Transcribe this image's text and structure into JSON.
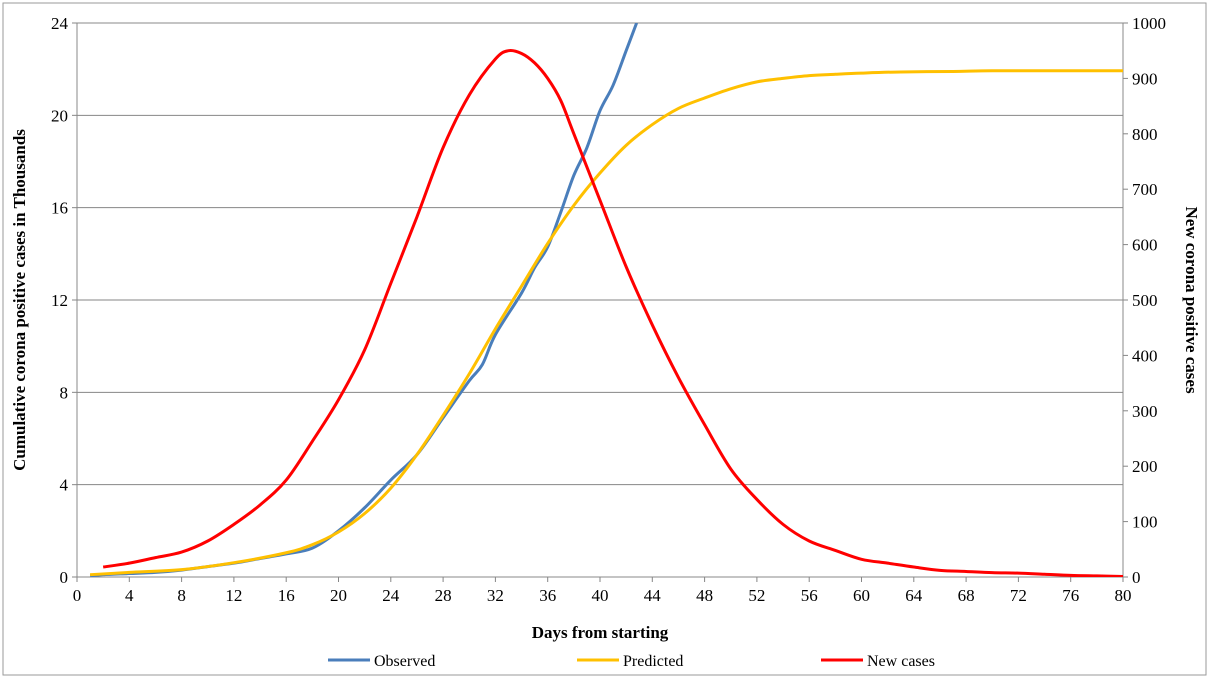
{
  "chart_data": {
    "type": "line",
    "title": "",
    "xlabel": "Days from starting",
    "ylabel_left": "Cumulative corona positive cases in Thousands",
    "ylabel_right": "New corona positive cases",
    "xlim": [
      0,
      80
    ],
    "ylim_left": [
      0,
      24
    ],
    "ylim_right": [
      0,
      1000
    ],
    "x_ticks": [
      "0",
      "4",
      "8",
      "12",
      "16",
      "20",
      "24",
      "28",
      "32",
      "36",
      "40",
      "44",
      "48",
      "52",
      "56",
      "60",
      "64",
      "68",
      "72",
      "76",
      "80"
    ],
    "y_left_ticks": [
      "0",
      "4",
      "8",
      "12",
      "16",
      "20",
      "24"
    ],
    "y_right_ticks": [
      "0",
      "100",
      "200",
      "300",
      "400",
      "500",
      "600",
      "700",
      "800",
      "900",
      "1000"
    ],
    "grid": "horizontal",
    "legend_position": "bottom",
    "series": [
      {
        "name": "Observed",
        "axis": "left",
        "color": "#4a7ebb",
        "points": [
          [
            1,
            0.05
          ],
          [
            2,
            0.1
          ],
          [
            4,
            0.15
          ],
          [
            6,
            0.2
          ],
          [
            8,
            0.3
          ],
          [
            10,
            0.45
          ],
          [
            12,
            0.6
          ],
          [
            14,
            0.8
          ],
          [
            16,
            1.0
          ],
          [
            18,
            1.25
          ],
          [
            20,
            2.0
          ],
          [
            22,
            3.0
          ],
          [
            24,
            4.2
          ],
          [
            26,
            5.3
          ],
          [
            28,
            6.9
          ],
          [
            30,
            8.5
          ],
          [
            31,
            9.2
          ],
          [
            32,
            10.5
          ],
          [
            34,
            12.3
          ],
          [
            35,
            13.4
          ],
          [
            36,
            14.3
          ],
          [
            37,
            15.8
          ],
          [
            38,
            17.4
          ],
          [
            39,
            18.6
          ],
          [
            40,
            20.2
          ],
          [
            41,
            21.3
          ],
          [
            42,
            22.8
          ],
          [
            42.8,
            24.0
          ]
        ]
      },
      {
        "name": "Predicted",
        "axis": "left",
        "color": "#ffc000",
        "points": [
          [
            1,
            0.1
          ],
          [
            4,
            0.2
          ],
          [
            8,
            0.32
          ],
          [
            12,
            0.62
          ],
          [
            16,
            1.05
          ],
          [
            18,
            1.4
          ],
          [
            20,
            1.95
          ],
          [
            22,
            2.75
          ],
          [
            24,
            3.85
          ],
          [
            26,
            5.3
          ],
          [
            28,
            7.0
          ],
          [
            30,
            8.8
          ],
          [
            32,
            10.75
          ],
          [
            34,
            12.6
          ],
          [
            36,
            14.45
          ],
          [
            38,
            16.1
          ],
          [
            40,
            17.5
          ],
          [
            42,
            18.7
          ],
          [
            44,
            19.6
          ],
          [
            46,
            20.3
          ],
          [
            48,
            20.75
          ],
          [
            50,
            21.15
          ],
          [
            52,
            21.45
          ],
          [
            54,
            21.6
          ],
          [
            56,
            21.72
          ],
          [
            58,
            21.78
          ],
          [
            60,
            21.83
          ],
          [
            63,
            21.88
          ],
          [
            67,
            21.9
          ],
          [
            70,
            21.93
          ],
          [
            75,
            21.93
          ],
          [
            80,
            21.93
          ]
        ]
      },
      {
        "name": "New cases",
        "axis": "right",
        "color": "#ff0000",
        "points": [
          [
            2,
            18
          ],
          [
            4,
            25
          ],
          [
            6,
            35
          ],
          [
            8,
            45
          ],
          [
            10,
            65
          ],
          [
            12,
            95
          ],
          [
            14,
            130
          ],
          [
            16,
            175
          ],
          [
            18,
            245
          ],
          [
            20,
            320
          ],
          [
            22,
            410
          ],
          [
            24,
            530
          ],
          [
            26,
            650
          ],
          [
            28,
            775
          ],
          [
            30,
            870
          ],
          [
            32,
            935
          ],
          [
            33,
            950
          ],
          [
            34,
            945
          ],
          [
            35,
            928
          ],
          [
            36,
            900
          ],
          [
            37,
            860
          ],
          [
            38,
            800
          ],
          [
            40,
            680
          ],
          [
            42,
            560
          ],
          [
            44,
            455
          ],
          [
            46,
            360
          ],
          [
            48,
            275
          ],
          [
            50,
            195
          ],
          [
            52,
            140
          ],
          [
            54,
            95
          ],
          [
            56,
            65
          ],
          [
            58,
            48
          ],
          [
            60,
            32
          ],
          [
            62,
            25
          ],
          [
            64,
            18
          ],
          [
            66,
            12
          ],
          [
            68,
            10
          ],
          [
            70,
            8
          ],
          [
            72,
            7
          ],
          [
            74,
            5
          ],
          [
            76,
            3
          ],
          [
            78,
            2
          ],
          [
            80,
            1
          ]
        ]
      }
    ]
  }
}
